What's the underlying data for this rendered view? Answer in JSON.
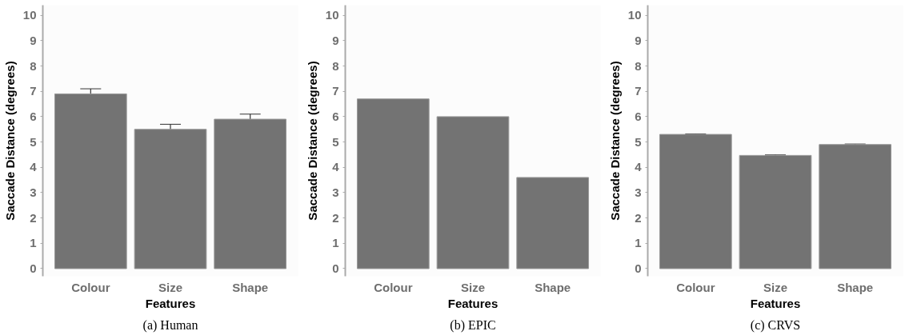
{
  "chart_data": [
    {
      "type": "bar",
      "title": "(a) Human",
      "xlabel": "Features",
      "ylabel": "Saccade Distance (degrees)",
      "categories": [
        "Colour",
        "Size",
        "Shape"
      ],
      "values": [
        6.9,
        5.5,
        5.9
      ],
      "errors": [
        0.2,
        0.2,
        0.2
      ],
      "color": "#737373",
      "ylim": [
        -0.3,
        10.4
      ],
      "yticks": [
        0,
        1,
        2,
        3,
        4,
        5,
        6,
        7,
        8,
        9,
        10
      ],
      "grid": false
    },
    {
      "type": "bar",
      "title": "(b) EPIC",
      "xlabel": "Features",
      "ylabel": "Saccade Distance (degrees)",
      "categories": [
        "Colour",
        "Size",
        "Shape"
      ],
      "values": [
        6.7,
        6.0,
        3.6
      ],
      "color": "#737373",
      "ylim": [
        -0.3,
        10.4
      ],
      "yticks": [
        0,
        1,
        2,
        3,
        4,
        5,
        6,
        7,
        8,
        9,
        10
      ],
      "grid": false
    },
    {
      "type": "bar",
      "title": "(c) CRVS",
      "xlabel": "Features",
      "ylabel": "Saccade Distance (degrees)",
      "categories": [
        "Colour",
        "Size",
        "Shape"
      ],
      "values": [
        5.3,
        4.47,
        4.9
      ],
      "errors": [
        0.02,
        0.02,
        0.02
      ],
      "color": "#737373",
      "ylim": [
        -0.3,
        10.4
      ],
      "yticks": [
        0,
        1,
        2,
        3,
        4,
        5,
        6,
        7,
        8,
        9,
        10
      ],
      "grid": false
    }
  ]
}
